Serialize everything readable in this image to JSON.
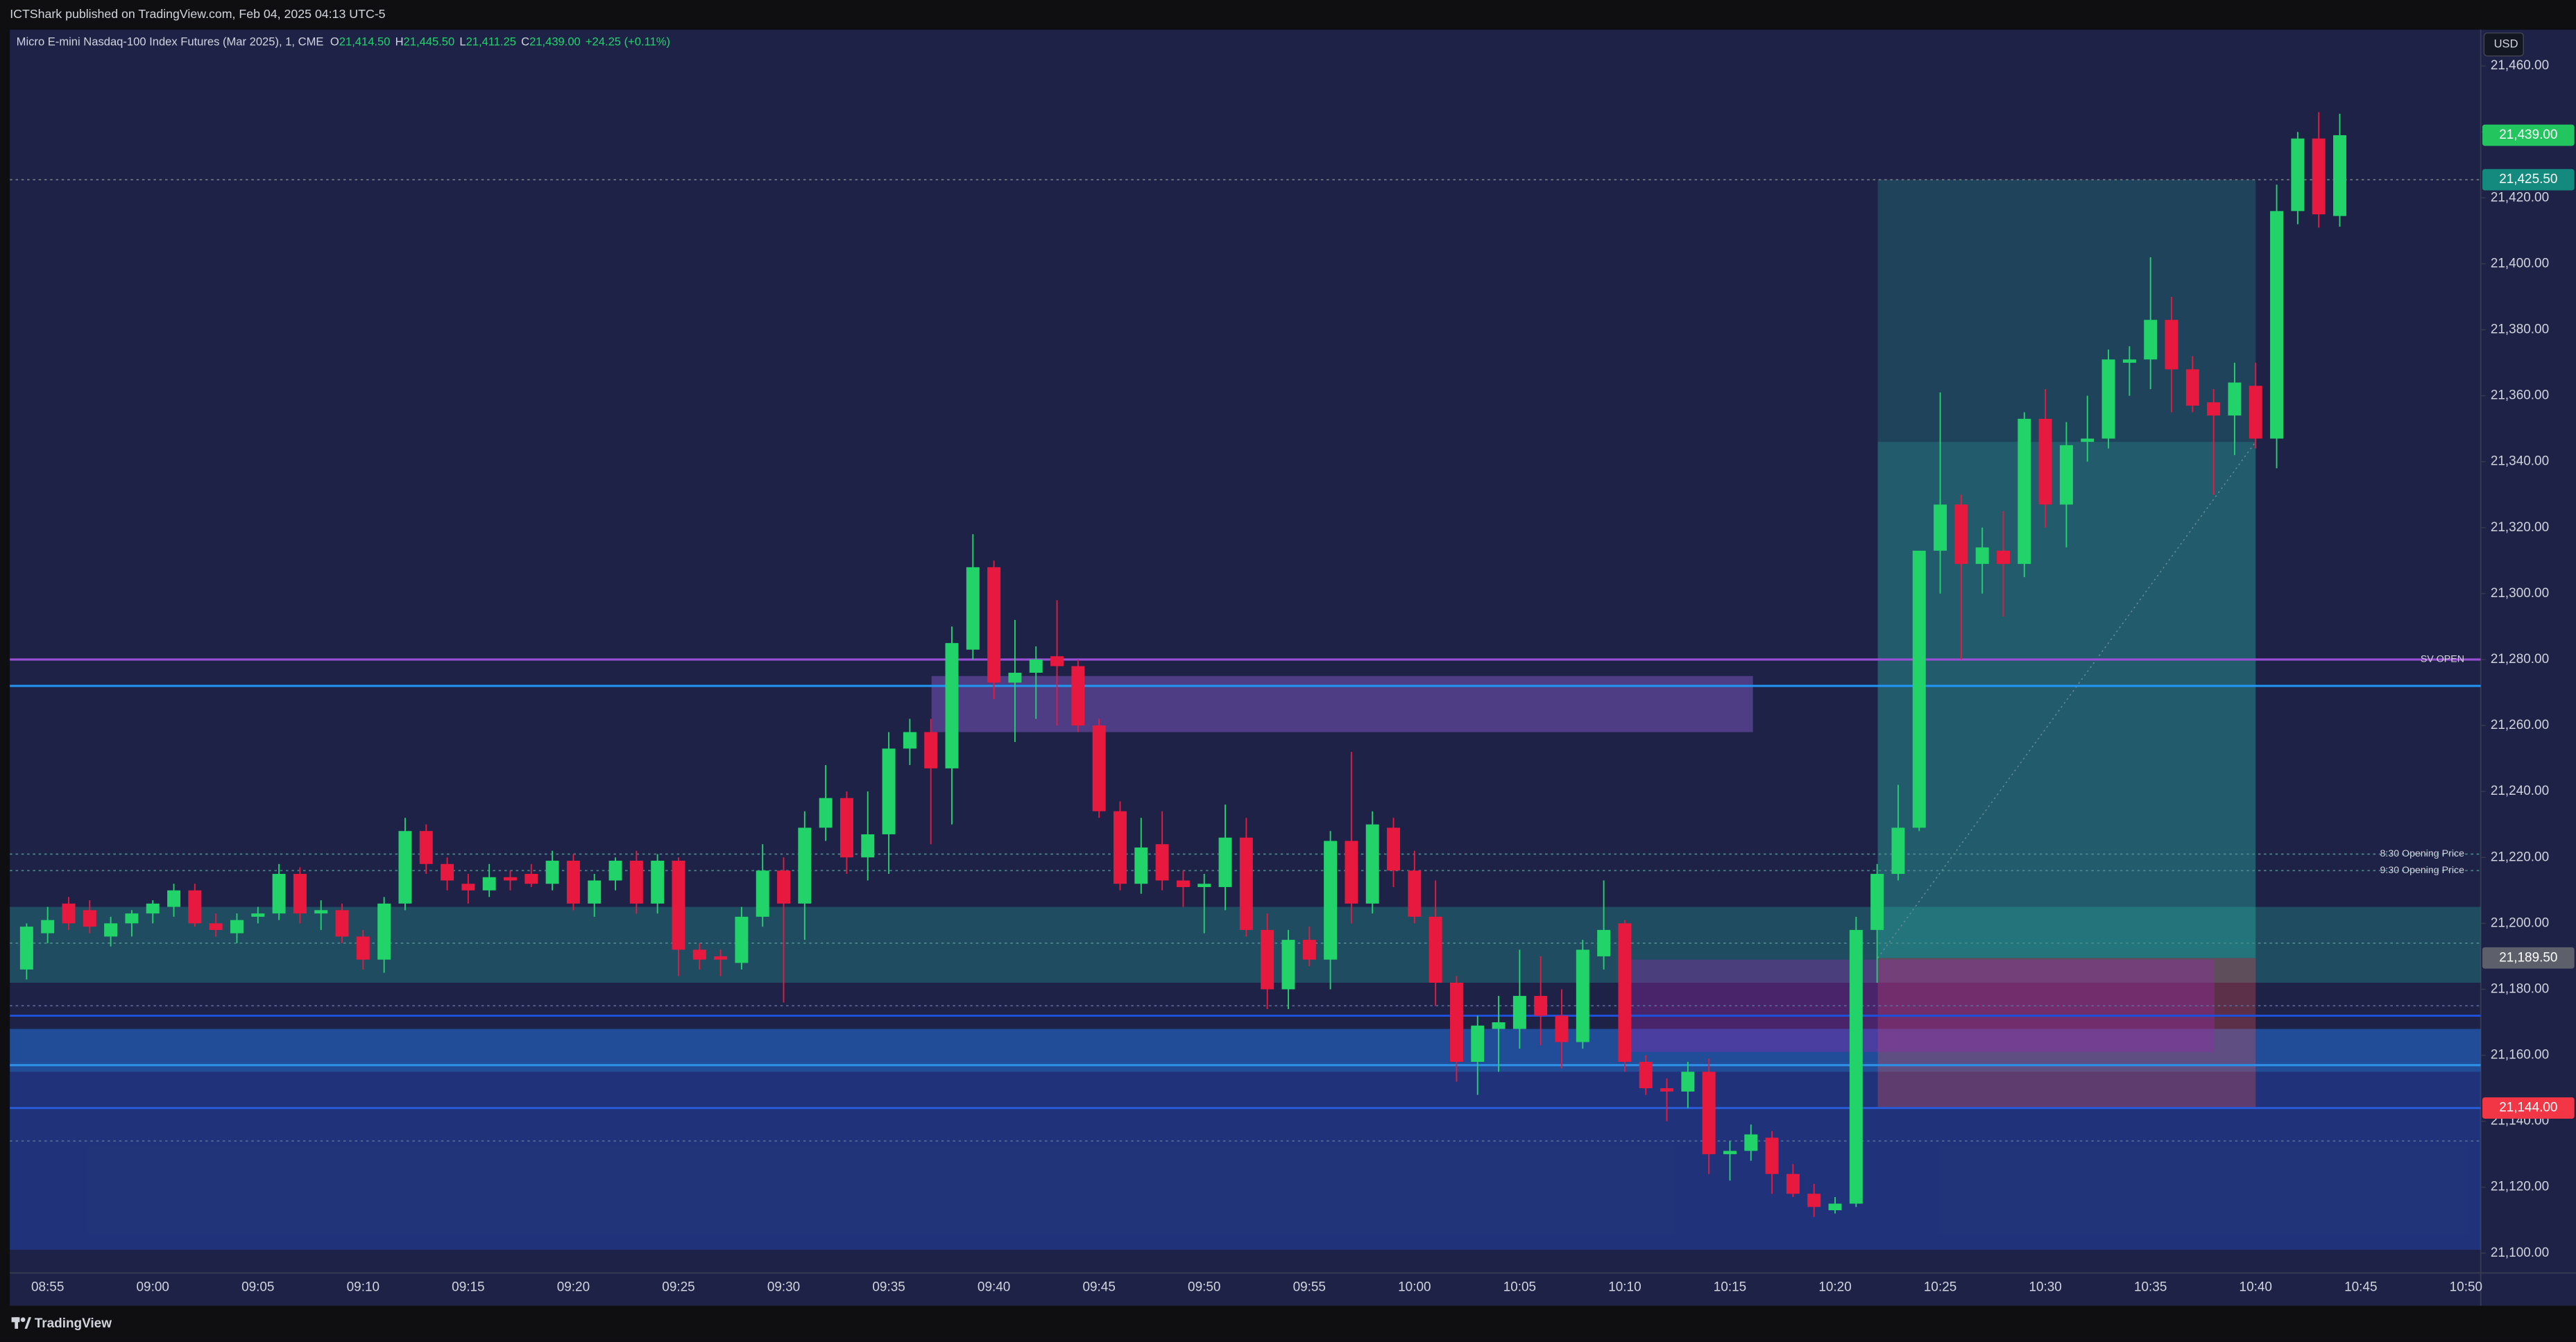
{
  "chart_data": {
    "type": "candlestick",
    "caption": "ICTShark published on TradingView.com, Feb 04, 2025 04:13 UTC-5",
    "title": "Micro E-mini Nasdaq-100 Index Futures (Mar 2025), 1, CME",
    "ohlc": [
      {
        "key": "O",
        "text": "21,414.50"
      },
      {
        "key": "H",
        "text": "21,445.50"
      },
      {
        "key": "L",
        "text": "21,411.25"
      },
      {
        "key": "C",
        "text": "21,439.00"
      }
    ],
    "change": "+24.25 (+0.11%)",
    "currency": "USD",
    "brand": "TradingView",
    "up_color": "#22d36a",
    "down_color": "#e8193f",
    "x": [
      null,
      "08:55",
      null,
      null,
      null,
      null,
      "09:00",
      null,
      null,
      null,
      null,
      "09:05",
      null,
      null,
      null,
      null,
      "09:10",
      null,
      null,
      null,
      null,
      "09:15",
      null,
      null,
      null,
      null,
      "09:20",
      null,
      null,
      null,
      null,
      "09:25",
      null,
      null,
      null,
      null,
      "09:30",
      null,
      null,
      null,
      null,
      "09:35",
      null,
      null,
      null,
      null,
      "09:40",
      null,
      null,
      null,
      null,
      "09:45",
      null,
      null,
      null,
      null,
      "09:50",
      null,
      null,
      null,
      null,
      "09:55",
      null,
      null,
      null,
      null,
      "10:00",
      null,
      null,
      null,
      null,
      "10:05",
      null,
      null,
      null,
      null,
      "10:10",
      null,
      null,
      null,
      null,
      "10:15",
      null,
      null,
      null,
      null,
      "10:20",
      null,
      null,
      null,
      null,
      "10:25",
      null,
      null,
      null,
      null,
      "10:30",
      null,
      null,
      null,
      null,
      "10:35",
      null,
      null,
      null,
      null,
      "10:40",
      null,
      null,
      null,
      null,
      "10:45",
      null,
      null,
      null,
      null,
      "10:50"
    ],
    "open": [
      21186,
      21197,
      21206,
      21204,
      21196,
      21200,
      21203,
      21205,
      21210,
      21200,
      21197,
      21202,
      21203,
      21215,
      21203,
      21204,
      21196,
      21189,
      21206,
      21228,
      21218,
      21212,
      21210,
      21214,
      21215,
      21212,
      21219,
      21206,
      21213,
      21219,
      21206,
      21219,
      21192,
      21190,
      21188,
      21202,
      21216,
      21206,
      21229,
      21238,
      21220,
      21227,
      21253,
      21258,
      21247,
      21283,
      21308,
      21273,
      21276,
      21281,
      21278,
      21260,
      21234,
      21212,
      21224,
      21213,
      21211,
      21211,
      21226,
      21198,
      21180,
      21195,
      21189,
      21225,
      21206,
      21229,
      21216,
      21202,
      21182,
      21158,
      21168,
      21168,
      21178,
      21172,
      21164,
      21190,
      21200,
      21158,
      21150,
      21149,
      21155,
      21130,
      21131,
      21135,
      21124,
      21118,
      21113,
      21115,
      21198,
      21215,
      21229,
      21313,
      21327,
      21309,
      21313,
      21309,
      21353,
      21327,
      21346,
      21347,
      21370,
      21371,
      21383,
      21368,
      21358,
      21354,
      21363,
      21347,
      21416,
      21438,
      21414.5,
      null,
      null,
      null,
      null,
      null,
      null
    ],
    "high": [
      21200,
      21205,
      21208,
      21207,
      21202,
      21204,
      21207,
      21212,
      21212,
      21203,
      21203,
      21205,
      21218,
      21217,
      21207,
      21206,
      21198,
      21208,
      21232,
      21230,
      21220,
      21215,
      21218,
      21216,
      21218,
      21222,
      21221,
      21215,
      21220,
      21222,
      21221,
      21220,
      21194,
      21192,
      21205,
      21224,
      21220,
      21234,
      21248,
      21240,
      21240,
      21258,
      21262,
      21262,
      21290,
      21318,
      21310,
      21292,
      21284,
      21298,
      21280,
      21262,
      21237,
      21232,
      21234,
      21216,
      21215,
      21236,
      21232,
      21203,
      21198,
      21199,
      21228,
      21252,
      21234,
      21232,
      21222,
      21213,
      21184,
      21172,
      21178,
      21192,
      21190,
      21180,
      21195,
      21213,
      21201,
      21160,
      21153,
      21158,
      21159,
      21134,
      21139,
      21137,
      21127,
      21121,
      21117,
      21202,
      21218,
      21242,
      21313,
      21361,
      21330,
      21320,
      21325,
      21355,
      21362,
      21352,
      21360,
      21374,
      21375,
      21402,
      21390,
      21372,
      21362,
      21370,
      21370,
      21424,
      21440,
      21446,
      21445.5,
      null,
      null,
      null,
      null,
      null,
      null
    ],
    "low": [
      21183,
      21194,
      21198,
      21197,
      21193,
      21196,
      21200,
      21202,
      21199,
      21196,
      21194,
      21200,
      21201,
      21200,
      21198,
      21194,
      21186,
      21185,
      21204,
      21215,
      21210,
      21206,
      21208,
      21210,
      21211,
      21210,
      21204,
      21202,
      21210,
      21203,
      21203,
      21184,
      21186,
      21184,
      21186,
      21199,
      21176,
      21195,
      21225,
      21215,
      21213,
      21215,
      21248,
      21224,
      21230,
      21280,
      21268,
      21255,
      21262,
      21260,
      21258,
      21232,
      21210,
      21209,
      21210,
      21205,
      21197,
      21204,
      21196,
      21174,
      21174,
      21187,
      21180,
      21200,
      21203,
      21211,
      21200,
      21175,
      21152,
      21148,
      21155,
      21162,
      21163,
      21156,
      21162,
      21186,
      21155,
      21148,
      21140,
      21144,
      21124,
      21122,
      21128,
      21118,
      21117,
      21111,
      21112,
      21114,
      21182,
      21213,
      21228,
      21300,
      21280,
      21300,
      21293,
      21305,
      21320,
      21314,
      21340,
      21344,
      21360,
      21362,
      21355,
      21355,
      21330,
      21342,
      21344,
      21338,
      21412,
      21411,
      21411.25,
      null,
      null,
      null,
      null,
      null,
      null
    ],
    "close": [
      21199,
      21201,
      21200,
      21199,
      21200,
      21203,
      21206,
      21210,
      21200,
      21198,
      21201,
      21203,
      21215,
      21203,
      21204,
      21196,
      21189,
      21206,
      21228,
      21218,
      21213,
      21210,
      21214,
      21213,
      21212,
      21219,
      21206,
      21213,
      21219,
      21206,
      21219,
      21192,
      21189,
      21189,
      21202,
      21216,
      21206,
      21229,
      21238,
      21220,
      21227,
      21253,
      21258,
      21247,
      21285,
      21308,
      21273,
      21276,
      21280,
      21278,
      21260,
      21234,
      21212,
      21223,
      21213,
      21211,
      21212,
      21226,
      21198,
      21180,
      21195,
      21189,
      21225,
      21206,
      21230,
      21216,
      21202,
      21182,
      21158,
      21169,
      21170,
      21178,
      21172,
      21164,
      21192,
      21198,
      21158,
      21150,
      21149,
      21155,
      21130,
      21131,
      21136,
      21124,
      21118,
      21114,
      21115,
      21198,
      21215,
      21229,
      21313,
      21327,
      21309,
      21314,
      21309,
      21353,
      21327,
      21345,
      21347,
      21371,
      21371,
      21383,
      21368,
      21357,
      21354,
      21364,
      21347,
      21416,
      21438,
      21415,
      21439,
      null,
      null,
      null,
      null,
      null,
      null
    ],
    "ylim": [
      21094,
      21471
    ],
    "yticks": [
      {
        "value": 21100,
        "label": "21,100.00"
      },
      {
        "value": 21120,
        "label": "21,120.00"
      },
      {
        "value": 21140,
        "label": "21,140.00"
      },
      {
        "value": 21160,
        "label": "21,160.00"
      },
      {
        "value": 21180,
        "label": "21,180.00"
      },
      {
        "value": 21200,
        "label": "21,200.00"
      },
      {
        "value": 21220,
        "label": "21,220.00"
      },
      {
        "value": 21240,
        "label": "21,240.00"
      },
      {
        "value": 21260,
        "label": "21,260.00"
      },
      {
        "value": 21280,
        "label": "21,280.00"
      },
      {
        "value": 21300,
        "label": "21,300.00"
      },
      {
        "value": 21320,
        "label": "21,320.00"
      },
      {
        "value": 21340,
        "label": "21,340.00"
      },
      {
        "value": 21360,
        "label": "21,360.00"
      },
      {
        "value": 21380,
        "label": "21,380.00"
      },
      {
        "value": 21400,
        "label": "21,400.00"
      },
      {
        "value": 21420,
        "label": "21,420.00"
      },
      {
        "value": 21440,
        "label": "21,440.00"
      },
      {
        "value": 21460,
        "label": "21,460.00"
      }
    ],
    "grid": false,
    "zones": [
      {
        "low": 21182,
        "high": 21205,
        "color": "rgba(38,166,154,0.32)"
      },
      {
        "low": 21101,
        "high": 21168,
        "color": "rgba(41,98,255,0.28)"
      },
      {
        "low": 21155,
        "high": 21168,
        "color": "rgba(33,150,243,0.25)"
      },
      {
        "low": 21258,
        "high": 21275,
        "color": "rgba(126,87,194,0.5)"
      },
      {
        "low": 21189.5,
        "high": 21425.5,
        "color": "rgba(38,166,154,0.25)"
      },
      {
        "low": 21189.5,
        "high": 21346,
        "color": "rgba(38,166,154,0.25)"
      },
      {
        "low": 21144,
        "high": 21189.5,
        "color": "rgba(239,83,80,0.3)"
      },
      {
        "low": 21161,
        "high": 21189,
        "color": "rgba(156,39,176,0.35)"
      }
    ],
    "lines": [
      {
        "value": 21425.5,
        "color": "#787b86",
        "dashed": true
      },
      {
        "value": 21280,
        "color": "#9c4fd6",
        "dashed": false
      },
      {
        "value": 21272,
        "color": "#2196f3",
        "dashed": false
      },
      {
        "value": 21221,
        "color": "#4a8a8a",
        "dashed": true
      },
      {
        "value": 21216,
        "color": "#4a8a8a",
        "dashed": true
      },
      {
        "value": 21194,
        "color": "#4a8a8a",
        "dashed": true
      },
      {
        "value": 21175,
        "color": "#5a6a9a",
        "dashed": true
      },
      {
        "value": 21172,
        "color": "#1e4fd8",
        "dashed": false
      },
      {
        "value": 21157,
        "color": "#2e8fe8",
        "dashed": false
      },
      {
        "value": 21144,
        "color": "#2a5bd7",
        "dashed": false
      },
      {
        "value": 21134,
        "color": "#5a6a9a",
        "dashed": true
      }
    ],
    "annotations": [
      {
        "text": "SV OPEN",
        "value": 21280
      },
      {
        "text": "8:30 Opening Price",
        "value": 21221
      },
      {
        "text": "9:30 Opening Price",
        "value": 21216
      }
    ],
    "price_labels": [
      {
        "value": 21439,
        "label": "21,439.00",
        "color": "#22c55e"
      },
      {
        "value": 21425.5,
        "label": "21,425.50",
        "color": "#138a7d"
      },
      {
        "value": 21189.5,
        "label": "21,189.50",
        "color": "#5d606b"
      },
      {
        "value": 21144,
        "label": "21,144.00",
        "color": "#f23645"
      }
    ]
  }
}
